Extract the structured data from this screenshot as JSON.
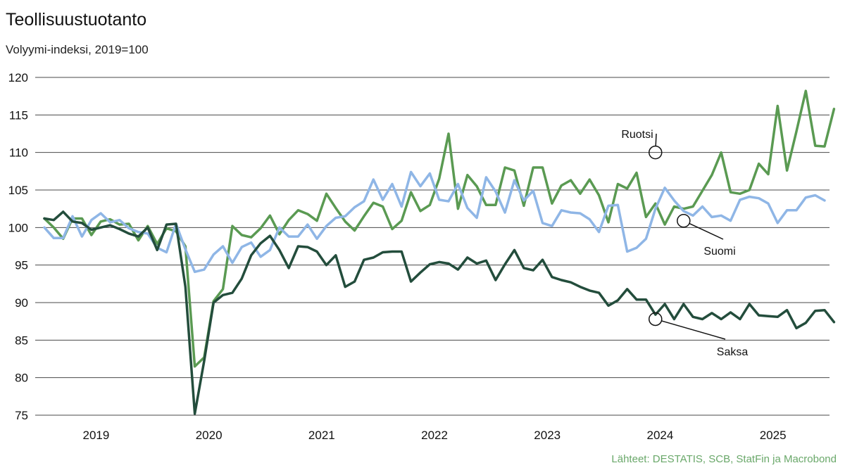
{
  "title": "Teollisuustuotanto",
  "subtitle": "Volyymi-indeksi, 2019=100",
  "source": "Lähteet: DESTATIS, SCB, StatFin ja Macrobond",
  "chart_data": {
    "type": "line",
    "title": "Teollisuustuotanto",
    "subtitle": "Volyymi-indeksi, 2019=100",
    "xlabel": "",
    "ylabel": "",
    "x_start": "2019-01",
    "x_end": "2025-06",
    "x_ticks": [
      "2019",
      "2020",
      "2021",
      "2022",
      "2023",
      "2024",
      "2025"
    ],
    "y_ticks": [
      75,
      80,
      85,
      90,
      95,
      100,
      105,
      110,
      115,
      120
    ],
    "ylim": [
      75,
      120
    ],
    "grid": true,
    "colors": {
      "Ruotsi": "#5a9a52",
      "Suomi": "#8fb6e6",
      "Saksa": "#234d3c"
    },
    "series": [
      {
        "name": "Ruotsi",
        "values": [
          101.2,
          100.0,
          98.5,
          101.2,
          101.2,
          99.0,
          100.8,
          101.1,
          100.4,
          100.5,
          98.3,
          100.2,
          97.8,
          99.9,
          99.5,
          97.5,
          81.5,
          82.7,
          90.2,
          91.8,
          100.2,
          99.0,
          98.7,
          99.9,
          101.6,
          99.1,
          101.0,
          102.3,
          101.8,
          100.9,
          104.5,
          102.6,
          100.8,
          99.6,
          101.5,
          103.3,
          102.8,
          99.8,
          100.9,
          104.7,
          102.2,
          103.0,
          106.5,
          112.5,
          102.5,
          107.0,
          105.5,
          103.0,
          103.0,
          108.0,
          107.6,
          102.9,
          108.0,
          108.0,
          103.2,
          105.6,
          106.3,
          104.5,
          106.4,
          104.3,
          100.7,
          105.8,
          105.2,
          107.3,
          101.4,
          103.2,
          100.4,
          102.8,
          102.5,
          102.8,
          104.9,
          107.0,
          110.0,
          104.7,
          104.5,
          105.0,
          108.5,
          107.1,
          116.2,
          107.6,
          112.8,
          118.2,
          110.9,
          110.8,
          115.8
        ]
      },
      {
        "name": "Suomi",
        "values": [
          100.0,
          98.6,
          98.6,
          101.5,
          98.8,
          101.0,
          101.9,
          100.7,
          101.0,
          99.9,
          99.4,
          99.2,
          97.3,
          96.7,
          100.5,
          97.1,
          94.1,
          94.4,
          96.4,
          97.5,
          95.3,
          97.4,
          98.0,
          96.1,
          97.0,
          100.0,
          98.8,
          98.8,
          100.4,
          98.5,
          100.2,
          101.3,
          101.5,
          102.7,
          103.5,
          106.4,
          103.7,
          105.8,
          102.8,
          107.4,
          105.5,
          107.2,
          103.7,
          103.5,
          105.8,
          102.6,
          101.3,
          106.7,
          104.8,
          102.0,
          106.3,
          103.6,
          104.9,
          100.6,
          100.2,
          102.3,
          102.0,
          101.9,
          101.1,
          99.4,
          102.9,
          103.0,
          96.8,
          97.3,
          98.5,
          102.5,
          105.3,
          103.6,
          102.2,
          101.6,
          102.8,
          101.4,
          101.6,
          100.9,
          103.7,
          104.1,
          103.9,
          103.2,
          100.6,
          102.3,
          102.3,
          104.0,
          104.3,
          103.6
        ]
      },
      {
        "name": "Saksa",
        "values": [
          101.2,
          101.0,
          102.1,
          100.8,
          100.6,
          99.7,
          100.0,
          100.3,
          99.8,
          99.2,
          98.8,
          100.0,
          97.0,
          100.4,
          100.5,
          92.1,
          75.2,
          82.2,
          90.0,
          91.0,
          91.3,
          93.2,
          96.3,
          97.9,
          98.9,
          97.0,
          94.6,
          97.5,
          97.4,
          96.8,
          95.0,
          96.3,
          92.1,
          92.8,
          95.7,
          96.0,
          96.7,
          96.8,
          96.8,
          92.8,
          94.0,
          95.1,
          95.4,
          95.2,
          94.4,
          96.0,
          95.2,
          95.6,
          93.0,
          95.1,
          97.0,
          94.6,
          94.3,
          95.7,
          93.4,
          93.0,
          92.7,
          92.1,
          91.6,
          91.3,
          89.6,
          90.3,
          91.8,
          90.4,
          90.4,
          88.4,
          89.8,
          87.8,
          89.8,
          88.1,
          87.8,
          88.6,
          87.8,
          88.7,
          87.8,
          89.8,
          88.3,
          88.2,
          88.1,
          89.0,
          86.6,
          87.3,
          88.9,
          89.0,
          87.4
        ]
      }
    ],
    "annotations": [
      {
        "series": "Ruotsi",
        "label": "Ruotsi",
        "x": "2024-06",
        "y": 110.0
      },
      {
        "series": "Suomi",
        "label": "Suomi",
        "x": "2024-09",
        "y": 100.9
      },
      {
        "series": "Saksa",
        "label": "Saksa",
        "x": "2024-06",
        "y": 87.8
      }
    ]
  }
}
